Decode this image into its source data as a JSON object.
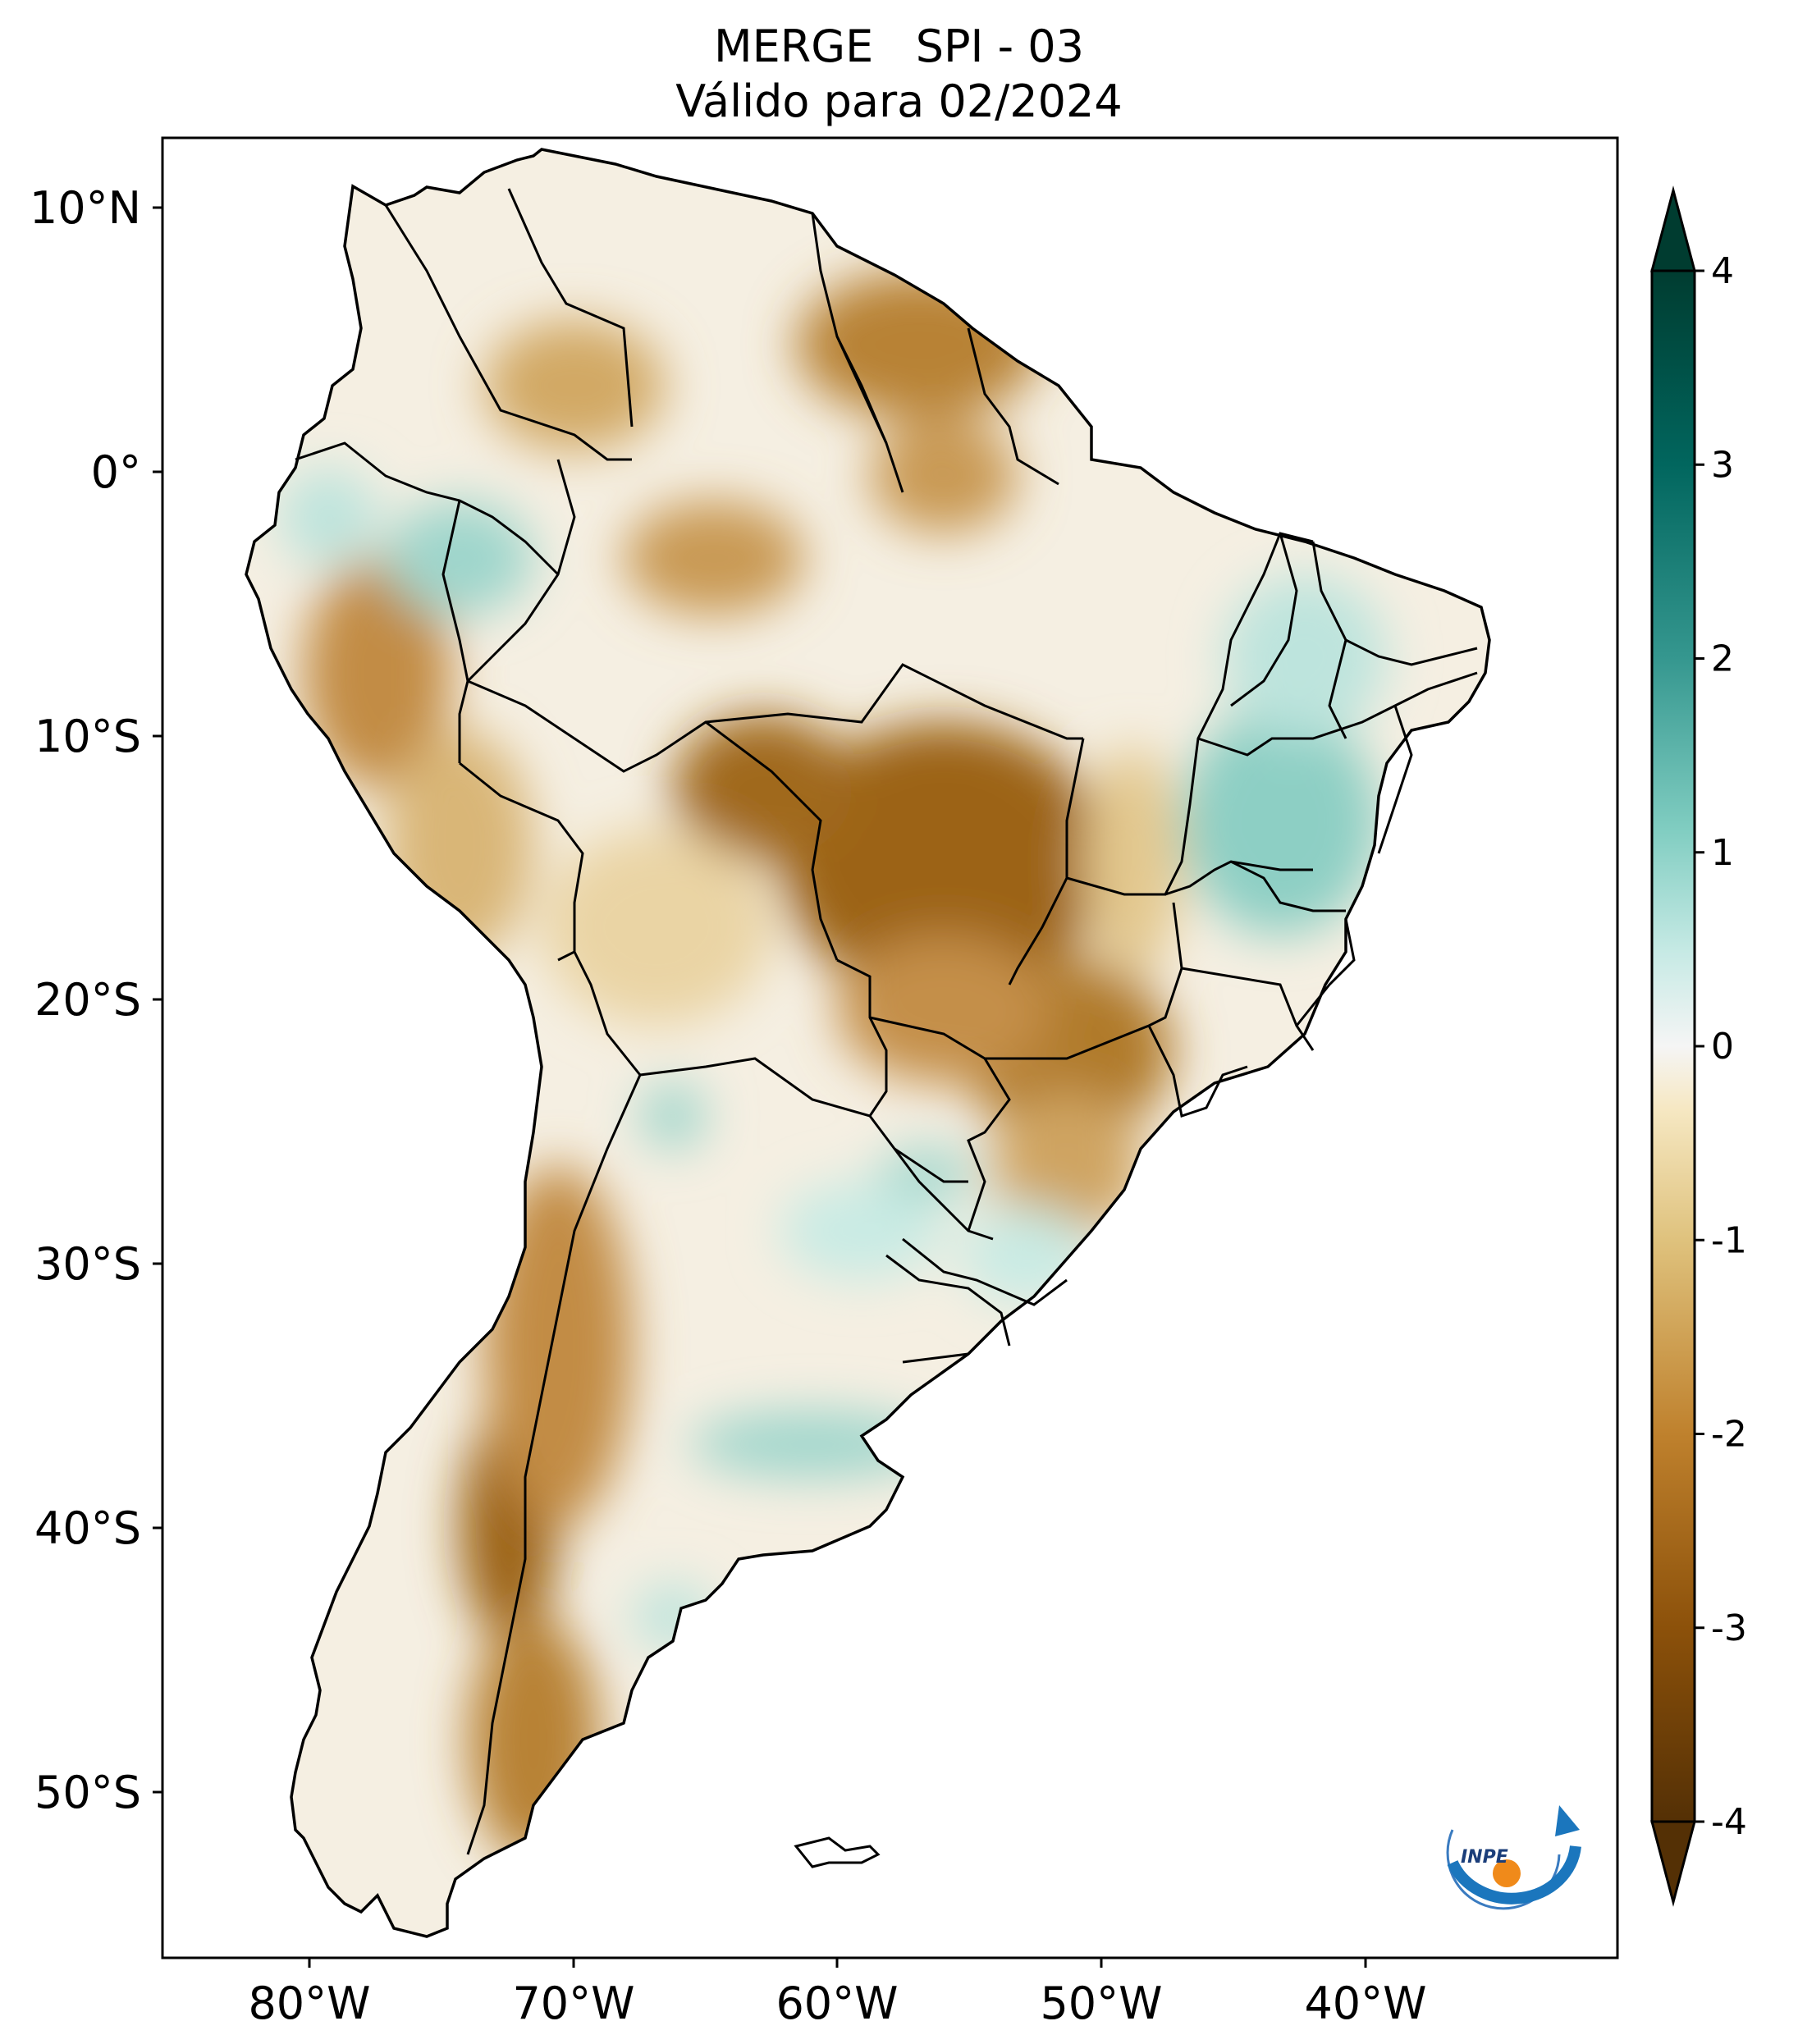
{
  "title": {
    "line1": "MERGE   SPI - 03",
    "line2": "Válido para 02/2024"
  },
  "map": {
    "region": "South America",
    "variable": "SPI - 03",
    "lon_ticks": [
      {
        "value": -80,
        "label": "80°W"
      },
      {
        "value": -70,
        "label": "70°W"
      },
      {
        "value": -60,
        "label": "60°W"
      },
      {
        "value": -50,
        "label": "50°W"
      },
      {
        "value": -40,
        "label": "40°W"
      }
    ],
    "lat_ticks": [
      {
        "value": 10,
        "label": "10°N"
      },
      {
        "value": 0,
        "label": "0°"
      },
      {
        "value": -10,
        "label": "10°S"
      },
      {
        "value": -20,
        "label": "20°S"
      },
      {
        "value": -30,
        "label": "30°S"
      },
      {
        "value": -40,
        "label": "40°S"
      },
      {
        "value": -50,
        "label": "50°S"
      }
    ]
  },
  "colorbar": {
    "min": -4,
    "max": 4,
    "extend": "both",
    "ticks": [
      {
        "value": 4,
        "label": "4"
      },
      {
        "value": 3,
        "label": "3"
      },
      {
        "value": 2,
        "label": "2"
      },
      {
        "value": 1,
        "label": "1"
      },
      {
        "value": 0,
        "label": "0"
      },
      {
        "value": -1,
        "label": "-1"
      },
      {
        "value": -2,
        "label": "-2"
      },
      {
        "value": -3,
        "label": "-3"
      },
      {
        "value": -4,
        "label": "-4"
      }
    ],
    "colors": {
      "dry_extreme": "#4f2d07",
      "dry_strong": "#8c5411",
      "dry_moderate": "#c48a3c",
      "dry_mild": "#e4c58b",
      "dry_light": "#f6ead0",
      "neutral": "#f5f5f5",
      "wet_light": "#d3eeea",
      "wet_mild": "#90d3c9",
      "wet_moderate": "#3f9b91",
      "wet_strong": "#0f6c61",
      "wet_extreme": "#003c30"
    }
  },
  "logo": {
    "text": "INPE"
  }
}
